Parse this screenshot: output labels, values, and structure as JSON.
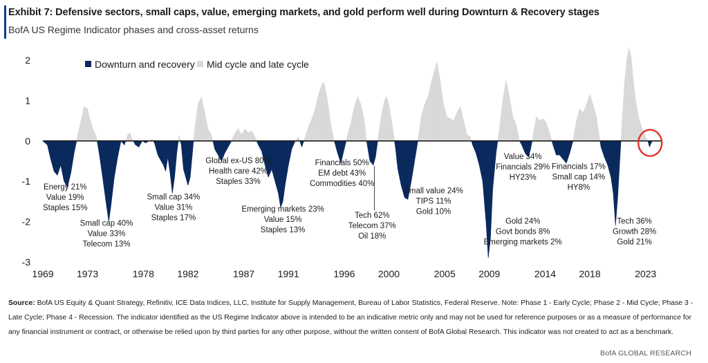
{
  "header": {
    "title": "Exhibit 7: Defensive sectors, small caps, value, emerging markets, and gold perform well during Downturn & Recovery stages",
    "subtitle": "BofA US Regime Indicator phases and cross-asset returns"
  },
  "colors": {
    "downturn": "#0a2a5e",
    "midcycle": "#d9d9d9",
    "accent": "#003a8c",
    "circle": "#e0312a"
  },
  "chart_data": {
    "type": "area",
    "xlim": [
      1969,
      2024.5
    ],
    "ylim": [
      -3,
      2
    ],
    "yticks": [
      "2",
      "1",
      "0",
      "-1",
      "-2",
      "-3"
    ],
    "xticks": [
      "1969",
      "1973",
      "1978",
      "1982",
      "1987",
      "1991",
      "1996",
      "2000",
      "2005",
      "2009",
      "2014",
      "2018",
      "2023"
    ],
    "legend": {
      "placement": "top-left",
      "downturn_label": "Downturn and recovery",
      "midcycle_label": "Mid cycle and late cycle"
    },
    "series": [
      {
        "name": "US Regime Indicator",
        "points": [
          [
            1969.0,
            0.0
          ],
          [
            1969.4,
            -0.1
          ],
          [
            1969.7,
            -0.45
          ],
          [
            1970.0,
            -0.75
          ],
          [
            1970.3,
            -0.85
          ],
          [
            1970.6,
            -0.6
          ],
          [
            1970.9,
            -1.0
          ],
          [
            1971.2,
            -1.15
          ],
          [
            1971.5,
            -0.8
          ],
          [
            1971.8,
            -0.3
          ],
          [
            1972.1,
            0.1
          ],
          [
            1972.4,
            0.5
          ],
          [
            1972.7,
            0.85
          ],
          [
            1973.0,
            0.8
          ],
          [
            1973.2,
            0.55
          ],
          [
            1973.5,
            0.3
          ],
          [
            1973.8,
            0.1
          ],
          [
            1974.1,
            -0.4
          ],
          [
            1974.4,
            -1.0
          ],
          [
            1974.7,
            -1.6
          ],
          [
            1974.9,
            -2.0
          ],
          [
            1975.1,
            -1.6
          ],
          [
            1975.4,
            -0.9
          ],
          [
            1975.7,
            -0.4
          ],
          [
            1976.0,
            0.0
          ],
          [
            1976.3,
            -0.1
          ],
          [
            1976.6,
            0.15
          ],
          [
            1976.8,
            0.2
          ],
          [
            1977.0,
            0.05
          ],
          [
            1977.3,
            -0.1
          ],
          [
            1977.6,
            -0.15
          ],
          [
            1977.9,
            0.0
          ],
          [
            1978.2,
            -0.05
          ],
          [
            1978.5,
            0.0
          ],
          [
            1978.8,
            0.05
          ],
          [
            1979.0,
            -0.05
          ],
          [
            1979.3,
            -0.35
          ],
          [
            1979.6,
            -0.5
          ],
          [
            1979.8,
            -0.6
          ],
          [
            1980.0,
            -0.75
          ],
          [
            1980.2,
            -0.4
          ],
          [
            1980.4,
            -0.8
          ],
          [
            1980.6,
            -1.3
          ],
          [
            1980.8,
            -0.9
          ],
          [
            1981.0,
            -0.3
          ],
          [
            1981.2,
            0.15
          ],
          [
            1981.4,
            -0.1
          ],
          [
            1981.6,
            -0.7
          ],
          [
            1981.8,
            -0.9
          ],
          [
            1982.0,
            -1.1
          ],
          [
            1982.2,
            -0.9
          ],
          [
            1982.4,
            -0.3
          ],
          [
            1982.6,
            0.3
          ],
          [
            1982.9,
            0.9
          ],
          [
            1983.2,
            1.1
          ],
          [
            1983.5,
            0.7
          ],
          [
            1983.8,
            0.3
          ],
          [
            1984.1,
            0.15
          ],
          [
            1984.4,
            -0.2
          ],
          [
            1984.7,
            -0.35
          ],
          [
            1985.0,
            -0.5
          ],
          [
            1985.3,
            -0.3
          ],
          [
            1985.6,
            -0.15
          ],
          [
            1985.9,
            0.0
          ],
          [
            1986.2,
            0.2
          ],
          [
            1986.5,
            0.3
          ],
          [
            1986.8,
            0.15
          ],
          [
            1987.1,
            0.3
          ],
          [
            1987.4,
            0.2
          ],
          [
            1987.7,
            0.25
          ],
          [
            1988.0,
            0.1
          ],
          [
            1988.3,
            -0.1
          ],
          [
            1988.6,
            -0.25
          ],
          [
            1988.9,
            -0.6
          ],
          [
            1989.2,
            -0.9
          ],
          [
            1989.5,
            -0.7
          ],
          [
            1989.8,
            -1.0
          ],
          [
            1990.1,
            -1.3
          ],
          [
            1990.3,
            -1.65
          ],
          [
            1990.5,
            -1.5
          ],
          [
            1990.7,
            -1.1
          ],
          [
            1991.0,
            -0.6
          ],
          [
            1991.3,
            -0.2
          ],
          [
            1991.6,
            0.0
          ],
          [
            1991.9,
            0.1
          ],
          [
            1992.2,
            -0.15
          ],
          [
            1992.5,
            0.1
          ],
          [
            1992.8,
            0.35
          ],
          [
            1993.1,
            0.55
          ],
          [
            1993.4,
            0.8
          ],
          [
            1993.7,
            1.15
          ],
          [
            1994.0,
            1.4
          ],
          [
            1994.2,
            1.45
          ],
          [
            1994.5,
            1.0
          ],
          [
            1994.8,
            0.4
          ],
          [
            1995.1,
            0.0
          ],
          [
            1995.4,
            -0.3
          ],
          [
            1995.7,
            -0.55
          ],
          [
            1996.0,
            -0.2
          ],
          [
            1996.3,
            0.15
          ],
          [
            1996.6,
            0.45
          ],
          [
            1996.9,
            0.85
          ],
          [
            1997.2,
            1.1
          ],
          [
            1997.5,
            0.9
          ],
          [
            1997.8,
            0.5
          ],
          [
            1998.0,
            0.0
          ],
          [
            1998.3,
            -0.5
          ],
          [
            1998.6,
            -0.6
          ],
          [
            1998.8,
            -0.4
          ],
          [
            1999.0,
            0.0
          ],
          [
            1999.3,
            0.6
          ],
          [
            1999.6,
            1.0
          ],
          [
            1999.8,
            1.1
          ],
          [
            2000.0,
            0.9
          ],
          [
            2000.3,
            0.4
          ],
          [
            2000.6,
            -0.2
          ],
          [
            2000.8,
            -0.7
          ],
          [
            2001.1,
            -1.1
          ],
          [
            2001.4,
            -1.4
          ],
          [
            2001.7,
            -1.45
          ],
          [
            2002.0,
            -1.0
          ],
          [
            2002.3,
            -0.5
          ],
          [
            2002.6,
            0.0
          ],
          [
            2002.9,
            0.6
          ],
          [
            2003.2,
            0.9
          ],
          [
            2003.5,
            1.1
          ],
          [
            2003.8,
            1.45
          ],
          [
            2004.1,
            1.75
          ],
          [
            2004.3,
            1.95
          ],
          [
            2004.6,
            1.5
          ],
          [
            2004.9,
            0.9
          ],
          [
            2005.2,
            0.6
          ],
          [
            2005.5,
            0.55
          ],
          [
            2005.8,
            0.5
          ],
          [
            2006.1,
            0.7
          ],
          [
            2006.4,
            0.85
          ],
          [
            2006.7,
            0.5
          ],
          [
            2007.0,
            0.15
          ],
          [
            2007.3,
            0.1
          ],
          [
            2007.5,
            -0.1
          ],
          [
            2007.8,
            -0.3
          ],
          [
            2008.1,
            -0.6
          ],
          [
            2008.4,
            -1.0
          ],
          [
            2008.7,
            -2.0
          ],
          [
            2008.9,
            -2.9
          ],
          [
            2009.1,
            -2.4
          ],
          [
            2009.3,
            -1.2
          ],
          [
            2009.6,
            -0.3
          ],
          [
            2009.9,
            0.3
          ],
          [
            2010.2,
            1.0
          ],
          [
            2010.5,
            1.5
          ],
          [
            2010.8,
            1.1
          ],
          [
            2011.1,
            0.6
          ],
          [
            2011.4,
            0.4
          ],
          [
            2011.7,
            0.0
          ],
          [
            2011.9,
            -0.1
          ],
          [
            2012.2,
            -0.3
          ],
          [
            2012.5,
            -0.4
          ],
          [
            2012.7,
            -0.2
          ],
          [
            2012.9,
            0.1
          ],
          [
            2013.2,
            0.6
          ],
          [
            2013.5,
            0.5
          ],
          [
            2013.8,
            0.55
          ],
          [
            2014.1,
            0.45
          ],
          [
            2014.4,
            0.2
          ],
          [
            2014.7,
            -0.1
          ],
          [
            2015.0,
            -0.35
          ],
          [
            2015.3,
            -0.35
          ],
          [
            2015.6,
            -0.45
          ],
          [
            2015.9,
            -0.55
          ],
          [
            2016.2,
            -0.3
          ],
          [
            2016.5,
            0.0
          ],
          [
            2016.8,
            0.5
          ],
          [
            2017.1,
            0.8
          ],
          [
            2017.4,
            0.7
          ],
          [
            2017.7,
            0.9
          ],
          [
            2018.0,
            1.15
          ],
          [
            2018.3,
            0.9
          ],
          [
            2018.6,
            0.6
          ],
          [
            2018.8,
            0.2
          ],
          [
            2019.0,
            -0.15
          ],
          [
            2019.3,
            -0.4
          ],
          [
            2019.6,
            -0.6
          ],
          [
            2019.9,
            -0.9
          ],
          [
            2020.1,
            -1.3
          ],
          [
            2020.3,
            -2.1
          ],
          [
            2020.5,
            -1.4
          ],
          [
            2020.7,
            -0.4
          ],
          [
            2020.9,
            0.5
          ],
          [
            2021.1,
            1.4
          ],
          [
            2021.3,
            2.0
          ],
          [
            2021.5,
            2.3
          ],
          [
            2021.7,
            2.1
          ],
          [
            2021.9,
            1.5
          ],
          [
            2022.1,
            1.0
          ],
          [
            2022.4,
            0.55
          ],
          [
            2022.7,
            0.3
          ],
          [
            2023.0,
            0.1
          ],
          [
            2023.2,
            0.0
          ],
          [
            2023.35,
            -0.15
          ],
          [
            2023.5,
            -0.05
          ],
          [
            2023.6,
            0.0
          ]
        ]
      }
    ],
    "annotations": [
      {
        "year": 1971.0,
        "y": -1.2,
        "lines": [
          "Energy 21%",
          "Value 19%",
          "Staples 15%"
        ]
      },
      {
        "year": 1974.7,
        "y": -2.1,
        "lines": [
          "Small cap 40%",
          "Value 33%",
          "Telecom 13%"
        ]
      },
      {
        "year": 1980.7,
        "y": -1.45,
        "lines": [
          "Small cap 34%",
          "Value 31%",
          "Staples 17%"
        ]
      },
      {
        "year": 1986.5,
        "y": -0.55,
        "lines": [
          "Global ex-US 80%",
          "Health care 42%",
          "Staples 33%"
        ]
      },
      {
        "year": 1990.5,
        "y": -1.75,
        "lines": [
          "Emerging markets 23%",
          "Value 15%",
          "Staples 13%"
        ]
      },
      {
        "year": 1995.8,
        "y": -0.6,
        "lines": [
          "Financials 50%",
          "EM debt 43%",
          "Commodities 40%"
        ]
      },
      {
        "year": 1998.5,
        "y": -1.9,
        "lines": [
          "Tech 62%",
          "Telecom 37%",
          "Oil 18%"
        ]
      },
      {
        "year": 2004.0,
        "y": -1.3,
        "lines": [
          "Small value 24%",
          "TIPS 11%",
          "Gold 10%"
        ]
      },
      {
        "year": 2012.0,
        "y": -0.45,
        "lines": [
          "Value 34%",
          "Financials 29%",
          "HY23%"
        ]
      },
      {
        "year": 2012.0,
        "y": -2.05,
        "lines": [
          "Gold 24%",
          "Govt bonds 8%",
          "Emerging markets 2%"
        ]
      },
      {
        "year": 2017.0,
        "y": -0.7,
        "lines": [
          "Financials 17%",
          "Small cap 14%",
          "HY8%"
        ]
      },
      {
        "year": 2022.0,
        "y": -2.05,
        "lines": [
          "Tech 36%",
          "Growth 28%",
          "Gold 21%"
        ]
      }
    ]
  },
  "footer": {
    "source_label": "Source:",
    "source_text": "BofA US Equity & Quant Strategy, Refinitiv, ICE Data Indices, LLC, Institute for Supply Management, Bureau of Labor Statistics, Federal Reserve. Note: Phase 1 - Early Cycle; Phase 2 - Mid Cycle; Phase 3 - Late Cycle; Phase 4 - Recession. The indicator identified as the US Regime Indicator above is intended to be an indicative metric only and may not be used for reference purposes or as a measure of performance for any financial instrument or contract, or otherwise be relied upon by third parties for any other purpose, without the written consent of BofA Global Research. This indicator was not created to act as a benchmark.",
    "brand": "BofA GLOBAL RESEARCH"
  }
}
